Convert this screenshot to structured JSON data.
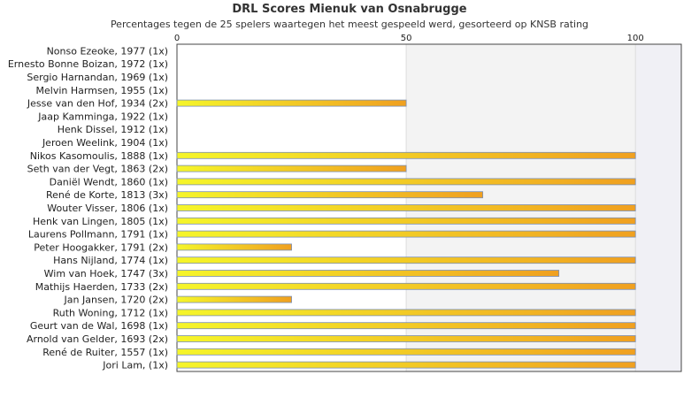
{
  "chart_data": {
    "type": "bar",
    "orientation": "horizontal",
    "title": "DRL Scores Mienuk van Osnabrugge",
    "subtitle": "Percentages tegen de 25 spelers waartegen het meest gespeeld werd, gesorteerd op KNSB rating",
    "xlim": [
      0,
      110
    ],
    "x_ticks": [
      "0",
      "50",
      "100"
    ],
    "grid": true,
    "colors": {
      "bar_start": "#f5f52a",
      "bar_end": "#f0a020",
      "bar_border": "#7a8fb5",
      "shade": "#f0f0f5"
    },
    "categories": [
      "Nonso Ezeoke, 1977 (1x)",
      "Ernesto Bonne Boizan, 1972 (1x)",
      "Sergio Harnandan, 1969 (1x)",
      "Melvin Harmsen, 1955 (1x)",
      "Jesse van den Hof, 1934 (2x)",
      "Jaap Kamminga, 1922 (1x)",
      "Henk Dissel, 1912 (1x)",
      "Jeroen Weelink, 1904 (1x)",
      "Nikos Kasomoulis, 1888 (1x)",
      "Seth van der Vegt, 1863 (2x)",
      "Daniël Wendt, 1860 (1x)",
      "René de Korte, 1813 (3x)",
      "Wouter Visser, 1806 (1x)",
      "Henk van Lingen, 1805 (1x)",
      "Laurens Pollmann, 1791 (1x)",
      "Peter Hoogakker, 1791 (2x)",
      "Hans Nijland, 1774 (1x)",
      "Wim van Hoek, 1747 (3x)",
      "Mathijs Haerden, 1733 (2x)",
      "Jan Jansen, 1720 (2x)",
      "Ruth Woning, 1712 (1x)",
      "Geurt van de Wal, 1698 (1x)",
      "Arnold van Gelder, 1693 (2x)",
      "René de Ruiter, 1557 (1x)",
      "Jori Lam,  (1x)"
    ],
    "values": [
      0,
      0,
      0,
      0,
      50,
      0,
      0,
      0,
      100,
      50,
      100,
      66.7,
      100,
      100,
      100,
      25,
      100,
      83.3,
      100,
      25,
      100,
      100,
      100,
      100,
      100
    ]
  }
}
